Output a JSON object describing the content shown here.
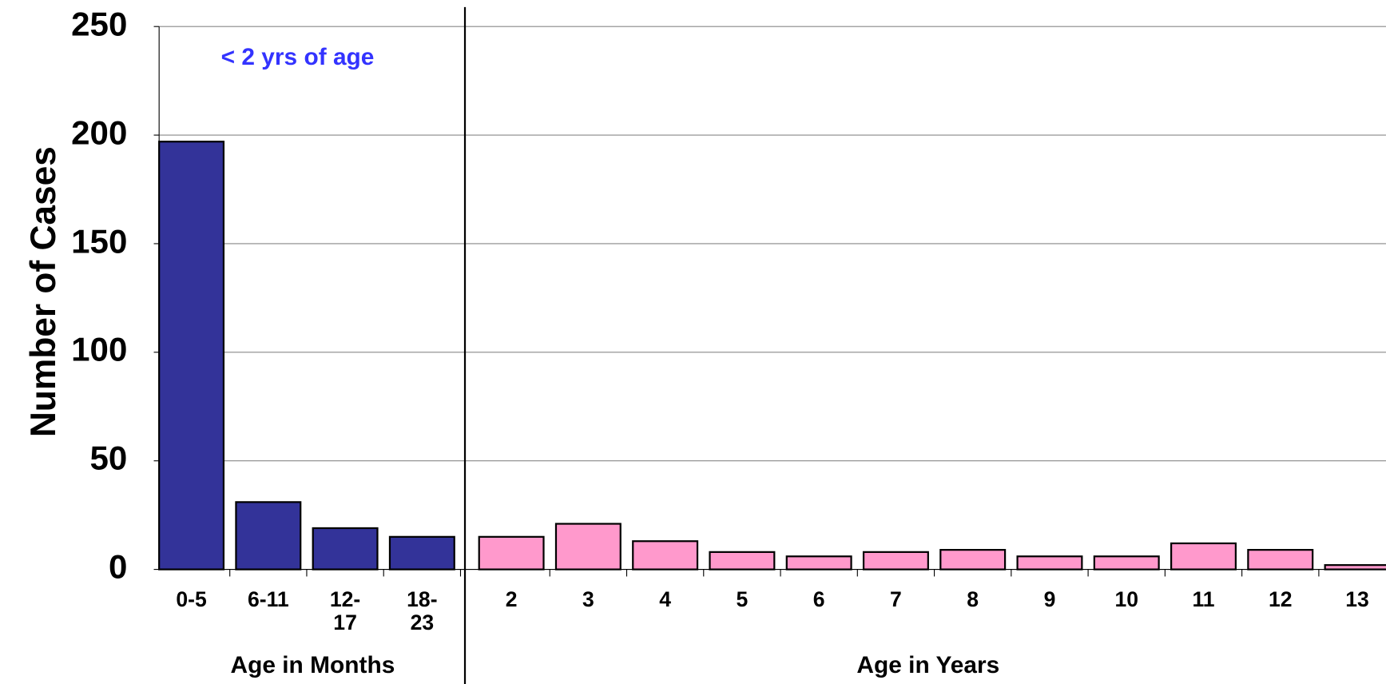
{
  "chart_data": {
    "type": "bar",
    "ylabel": "Number of Cases",
    "annotation": "< 2 yrs of age",
    "ylim": [
      0,
      250
    ],
    "yticks": [
      0,
      50,
      100,
      150,
      200,
      250
    ],
    "grid": true,
    "groups": [
      {
        "name": "Age in Months",
        "color": "#333399",
        "categories": [
          "0-5",
          "6-11",
          "12-17",
          "18-23"
        ],
        "values": [
          197,
          31,
          19,
          15
        ]
      },
      {
        "name": "Age in Years",
        "color": "#ff99cc",
        "categories": [
          "2",
          "3",
          "4",
          "5",
          "6",
          "7",
          "8",
          "9",
          "10",
          "11",
          "12",
          "13"
        ],
        "values": [
          15,
          21,
          13,
          8,
          6,
          8,
          9,
          6,
          6,
          12,
          9,
          2
        ]
      }
    ]
  }
}
